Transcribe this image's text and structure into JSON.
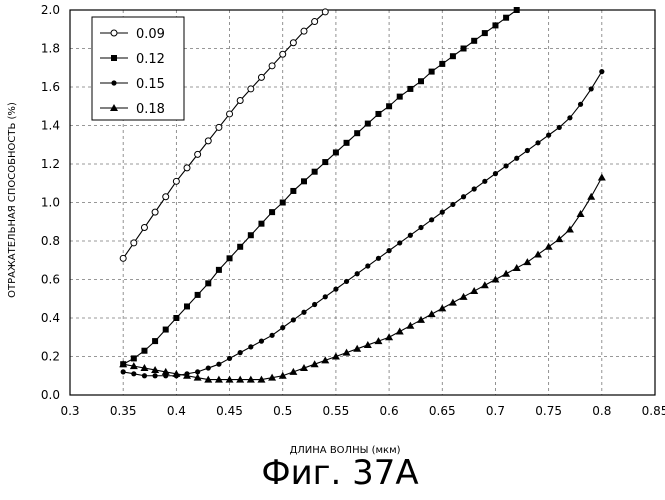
{
  "chart_data": {
    "type": "line",
    "title": "",
    "xlabel": "ДЛИНА ВОЛНЫ (мкм)",
    "ylabel": "ОТРАЖАТЕЛЬНАЯ СПОСОБНОСТЬ (%)",
    "xlim": [
      0.3,
      0.85
    ],
    "ylim": [
      0.0,
      2.0
    ],
    "xticks": [
      0.3,
      0.35,
      0.4,
      0.45,
      0.5,
      0.55,
      0.6,
      0.65,
      0.7,
      0.75,
      0.8,
      0.85
    ],
    "xtick_labels": [
      "0.3",
      "0.35",
      "0.4",
      "0.45",
      "0.5",
      "0.55",
      "0.6",
      "0.65",
      "0.7",
      "0.75",
      "0.8",
      "0.85"
    ],
    "yticks": [
      0.0,
      0.2,
      0.4,
      0.6,
      0.8,
      1.0,
      1.2,
      1.4,
      1.6,
      1.8,
      2.0
    ],
    "ytick_labels": [
      "0.0",
      "0.2",
      "0.4",
      "0.6",
      "0.8",
      "1.0",
      "1.2",
      "1.4",
      "1.6",
      "1.8",
      "2.0"
    ],
    "grid": "dashed",
    "legend_position": "top-left",
    "caption": "Фиг. 37А",
    "series": [
      {
        "name": "0.09",
        "marker": "open-circle",
        "x": [
          0.35,
          0.36,
          0.37,
          0.38,
          0.39,
          0.4,
          0.41,
          0.42,
          0.43,
          0.44,
          0.45,
          0.46,
          0.47,
          0.48,
          0.49,
          0.5,
          0.51,
          0.52,
          0.53,
          0.54
        ],
        "y": [
          0.71,
          0.79,
          0.87,
          0.95,
          1.03,
          1.11,
          1.18,
          1.25,
          1.32,
          1.39,
          1.46,
          1.53,
          1.59,
          1.65,
          1.71,
          1.77,
          1.83,
          1.89,
          1.94,
          1.99
        ]
      },
      {
        "name": "0.12",
        "marker": "filled-square",
        "x": [
          0.35,
          0.36,
          0.37,
          0.38,
          0.39,
          0.4,
          0.41,
          0.42,
          0.43,
          0.44,
          0.45,
          0.46,
          0.47,
          0.48,
          0.49,
          0.5,
          0.51,
          0.52,
          0.53,
          0.54,
          0.55,
          0.56,
          0.57,
          0.58,
          0.59,
          0.6,
          0.61,
          0.62,
          0.63,
          0.64,
          0.65,
          0.66,
          0.67,
          0.68,
          0.69,
          0.7,
          0.71,
          0.72
        ],
        "y": [
          0.16,
          0.19,
          0.23,
          0.28,
          0.34,
          0.4,
          0.46,
          0.52,
          0.58,
          0.65,
          0.71,
          0.77,
          0.83,
          0.89,
          0.95,
          1.0,
          1.06,
          1.11,
          1.16,
          1.21,
          1.26,
          1.31,
          1.36,
          1.41,
          1.46,
          1.5,
          1.55,
          1.59,
          1.63,
          1.68,
          1.72,
          1.76,
          1.8,
          1.84,
          1.88,
          1.92,
          1.96,
          2.0
        ]
      },
      {
        "name": "0.15",
        "marker": "filled-circle",
        "x": [
          0.35,
          0.36,
          0.37,
          0.38,
          0.39,
          0.4,
          0.41,
          0.42,
          0.43,
          0.44,
          0.45,
          0.46,
          0.47,
          0.48,
          0.49,
          0.5,
          0.51,
          0.52,
          0.53,
          0.54,
          0.55,
          0.56,
          0.57,
          0.58,
          0.59,
          0.6,
          0.61,
          0.62,
          0.63,
          0.64,
          0.65,
          0.66,
          0.67,
          0.68,
          0.69,
          0.7,
          0.71,
          0.72,
          0.73,
          0.74,
          0.75,
          0.76,
          0.77,
          0.78,
          0.79,
          0.8
        ],
        "y": [
          0.12,
          0.11,
          0.1,
          0.1,
          0.1,
          0.1,
          0.11,
          0.12,
          0.14,
          0.16,
          0.19,
          0.22,
          0.25,
          0.28,
          0.31,
          0.35,
          0.39,
          0.43,
          0.47,
          0.51,
          0.55,
          0.59,
          0.63,
          0.67,
          0.71,
          0.75,
          0.79,
          0.83,
          0.87,
          0.91,
          0.95,
          0.99,
          1.03,
          1.07,
          1.11,
          1.15,
          1.19,
          1.23,
          1.27,
          1.31,
          1.35,
          1.39,
          1.44,
          1.51,
          1.59,
          1.68
        ]
      },
      {
        "name": "0.18",
        "marker": "filled-triangle",
        "x": [
          0.35,
          0.36,
          0.37,
          0.38,
          0.39,
          0.4,
          0.41,
          0.42,
          0.43,
          0.44,
          0.45,
          0.46,
          0.47,
          0.48,
          0.49,
          0.5,
          0.51,
          0.52,
          0.53,
          0.54,
          0.55,
          0.56,
          0.57,
          0.58,
          0.59,
          0.6,
          0.61,
          0.62,
          0.63,
          0.64,
          0.65,
          0.66,
          0.67,
          0.68,
          0.69,
          0.7,
          0.71,
          0.72,
          0.73,
          0.74,
          0.75,
          0.76,
          0.77,
          0.78,
          0.79,
          0.8
        ],
        "y": [
          0.16,
          0.15,
          0.14,
          0.13,
          0.12,
          0.11,
          0.1,
          0.09,
          0.08,
          0.08,
          0.08,
          0.08,
          0.08,
          0.08,
          0.09,
          0.1,
          0.12,
          0.14,
          0.16,
          0.18,
          0.2,
          0.22,
          0.24,
          0.26,
          0.28,
          0.3,
          0.33,
          0.36,
          0.39,
          0.42,
          0.45,
          0.48,
          0.51,
          0.54,
          0.57,
          0.6,
          0.63,
          0.66,
          0.69,
          0.73,
          0.77,
          0.81,
          0.86,
          0.94,
          1.03,
          1.13
        ]
      }
    ]
  }
}
